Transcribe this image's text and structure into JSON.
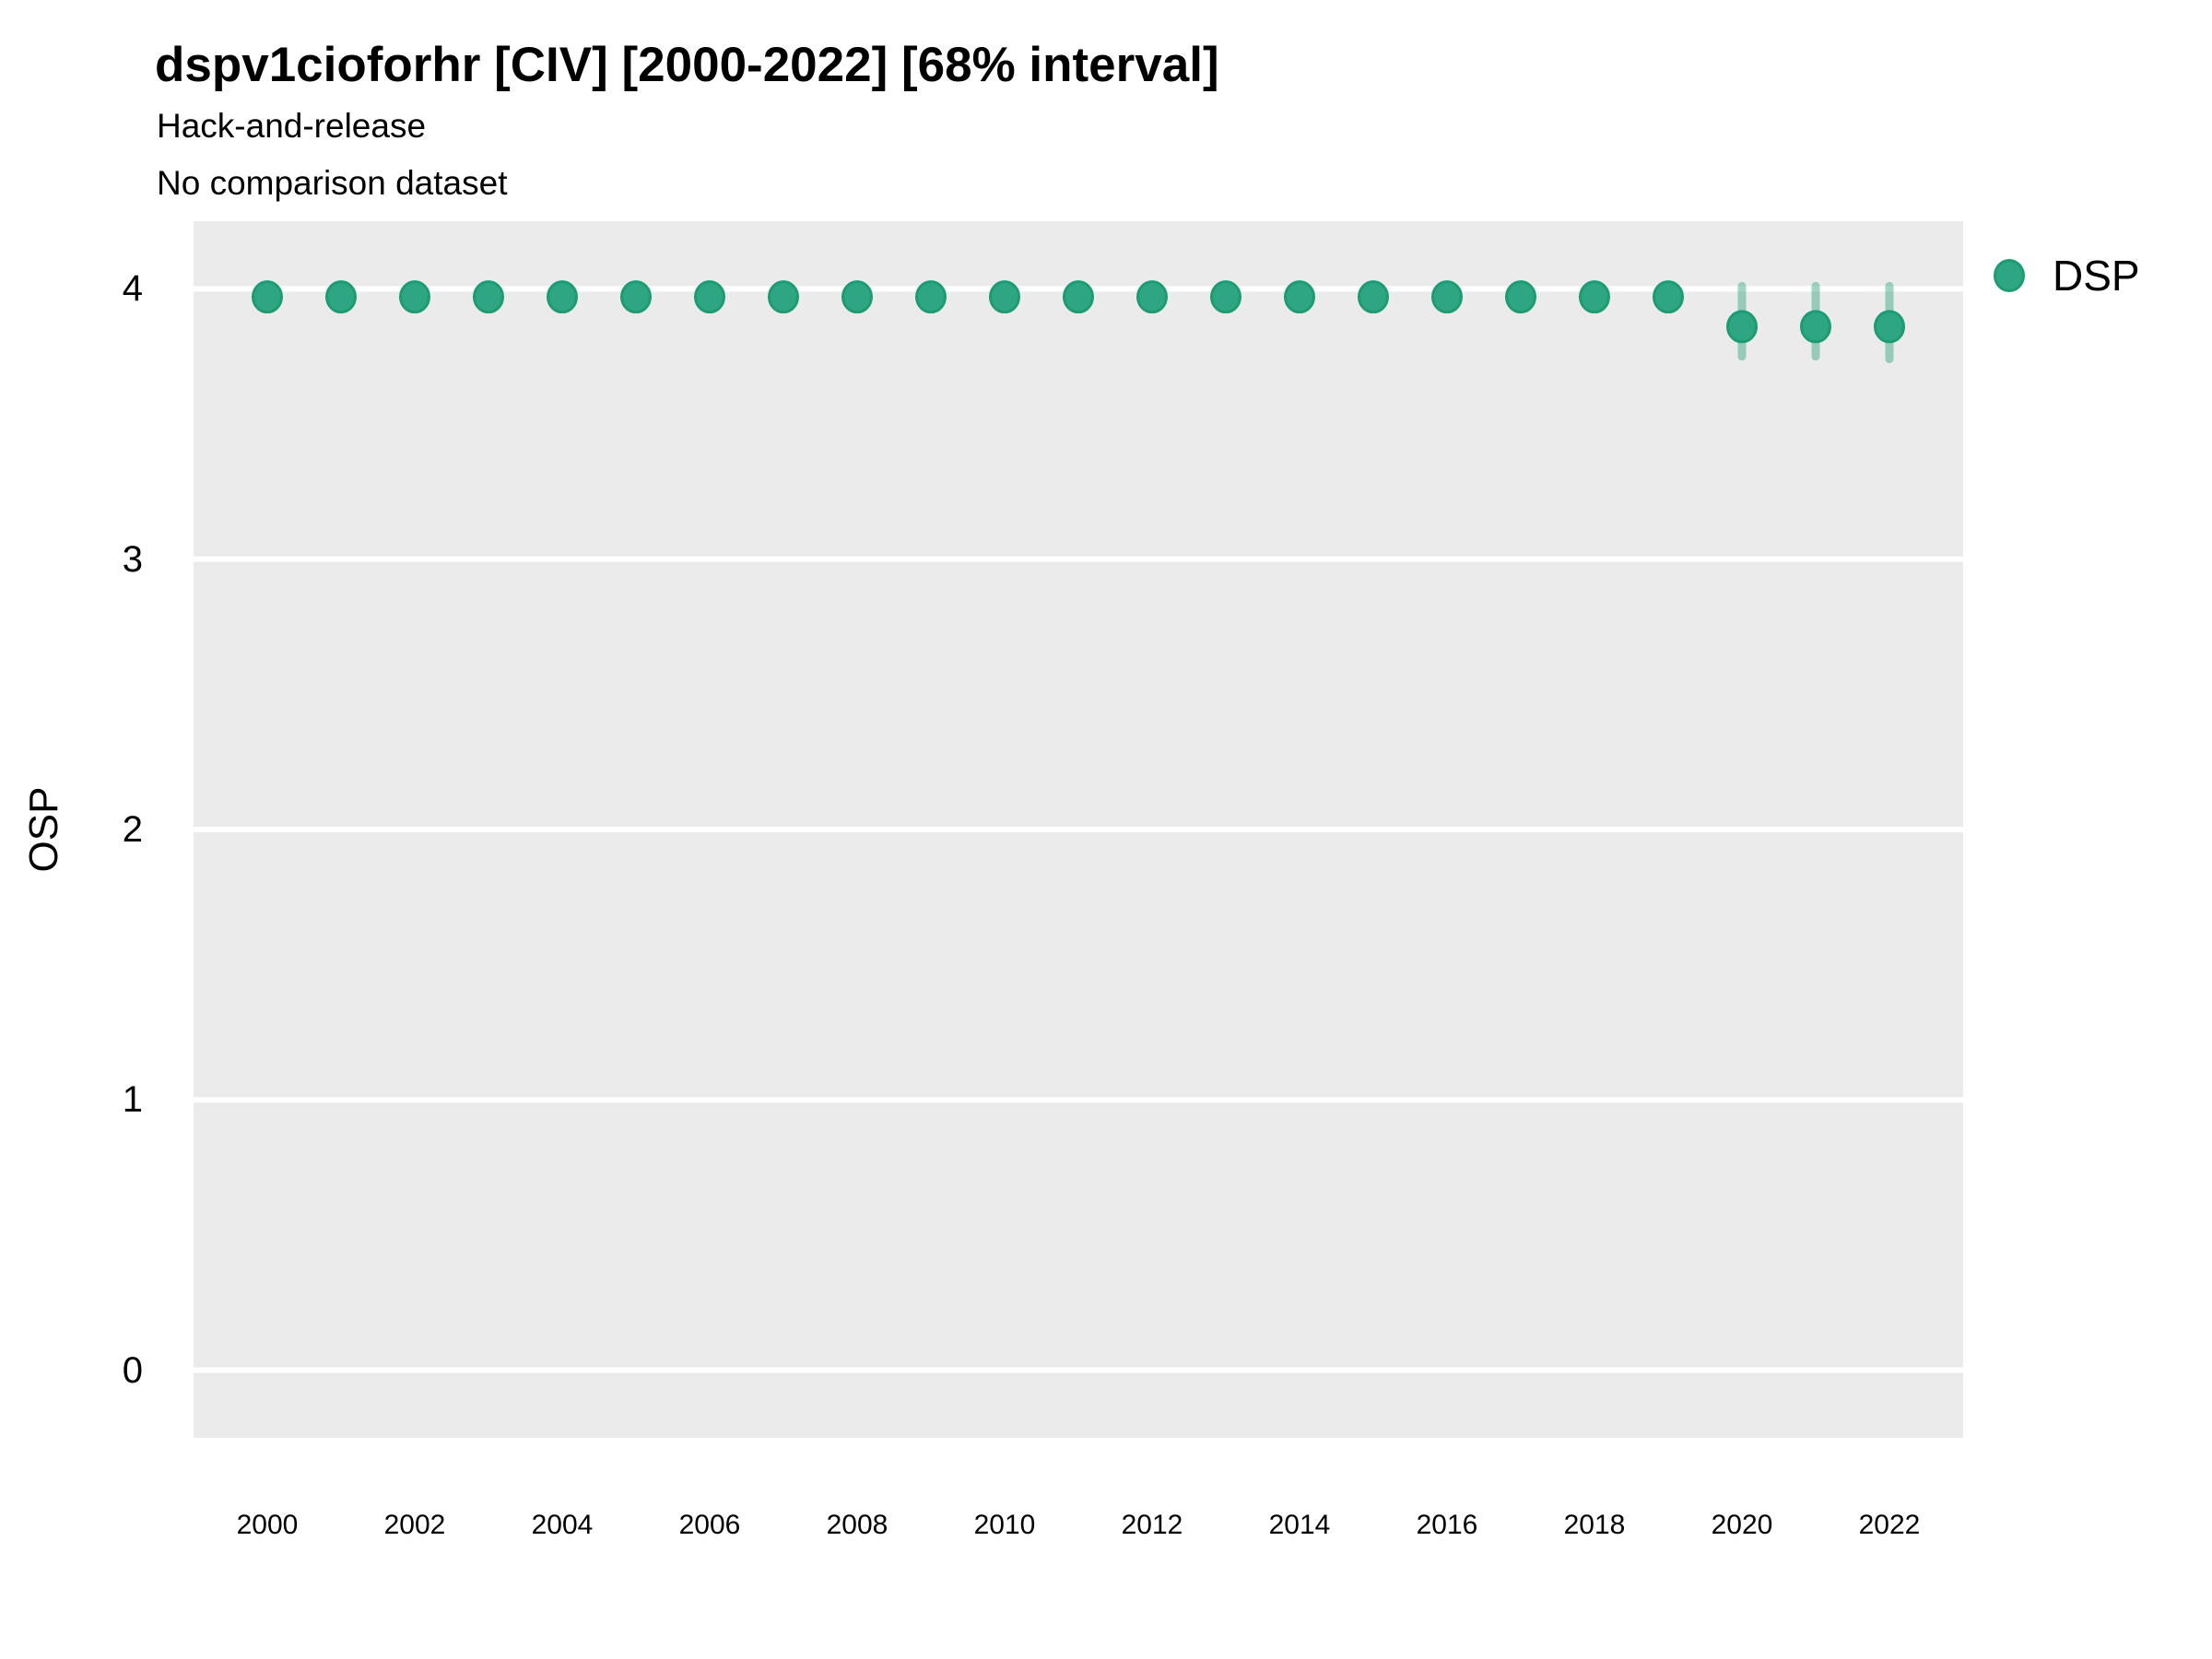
{
  "figure": {
    "title": "dspv1cioforhr [CIV] [2000-2022] [68% interval]",
    "subtitle": "Hack-and-release",
    "note": "No comparison dataset"
  },
  "chart_data": {
    "type": "scatter",
    "subtype": "pointrange",
    "title": "dspv1cioforhr [CIV] [2000-2022] [68% interval]",
    "subtitle": "Hack-and-release",
    "annotation": "No comparison dataset",
    "xlabel": "",
    "ylabel": "OSP",
    "interval": "68%",
    "grid": "horizontal-major-only",
    "legend_position": "right-top",
    "legend": [
      {
        "label": "DSP"
      }
    ],
    "x_ticks": [
      2000,
      2002,
      2004,
      2006,
      2008,
      2010,
      2012,
      2014,
      2016,
      2018,
      2020,
      2022
    ],
    "y_ticks": [
      4,
      3,
      2,
      1,
      0
    ],
    "xlim": [
      1999,
      2023
    ],
    "ylim": [
      -0.25,
      4.25
    ],
    "series": [
      {
        "name": "DSP",
        "x": [
          2000,
          2001,
          2002,
          2003,
          2004,
          2005,
          2006,
          2007,
          2008,
          2009,
          2010,
          2011,
          2012,
          2013,
          2014,
          2015,
          2016,
          2017,
          2018,
          2019,
          2020,
          2021,
          2022
        ],
        "y": [
          3.97,
          3.97,
          3.97,
          3.97,
          3.97,
          3.97,
          3.97,
          3.97,
          3.97,
          3.97,
          3.97,
          3.97,
          3.97,
          3.97,
          3.97,
          3.97,
          3.97,
          3.97,
          3.97,
          3.97,
          3.86,
          3.86,
          3.86
        ],
        "lo": [
          3.97,
          3.97,
          3.97,
          3.97,
          3.97,
          3.97,
          3.97,
          3.97,
          3.97,
          3.97,
          3.97,
          3.97,
          3.97,
          3.97,
          3.97,
          3.97,
          3.97,
          3.97,
          3.97,
          3.97,
          3.75,
          3.75,
          3.74
        ],
        "hi": [
          3.97,
          3.97,
          3.97,
          3.97,
          3.97,
          3.97,
          3.97,
          3.97,
          3.97,
          3.97,
          3.97,
          3.97,
          3.97,
          3.97,
          3.97,
          3.97,
          3.97,
          3.97,
          3.97,
          3.97,
          4.01,
          4.01,
          4.01
        ]
      }
    ]
  },
  "colors": {
    "point_fill": "#2EA583",
    "point_stroke": "#1D9C72",
    "interval_bar": "rgba(46,165,131,0.45)",
    "panel_bg": "#EBEBEB",
    "gridline": "#FFFFFF",
    "text": "#000000"
  }
}
